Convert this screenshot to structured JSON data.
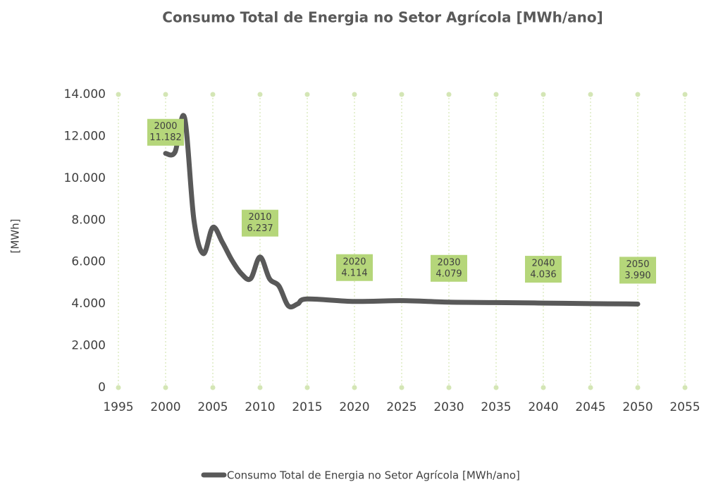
{
  "chart_data": {
    "type": "line",
    "title": "Consumo Total de Energia no Setor Agrícola [MWh/ano]",
    "y_label": "[MWh]",
    "x": [
      2000,
      2001,
      2002,
      2003,
      2004,
      2005,
      2006,
      2007,
      2008,
      2009,
      2010,
      2011,
      2012,
      2013,
      2014,
      2015,
      2020,
      2025,
      2030,
      2035,
      2040,
      2045,
      2050
    ],
    "series": [
      {
        "name": "Consumo Total de Energia no Setor Agrícola [MWh/ano]",
        "color": "#595959",
        "values": [
          11182,
          11250,
          12900,
          8000,
          6400,
          7650,
          6950,
          6100,
          5450,
          5200,
          6237,
          5200,
          4850,
          3900,
          4000,
          4230,
          4114,
          4150,
          4079,
          4060,
          4036,
          4010,
          3990
        ],
        "value_labels": [
          "11.182",
          null,
          null,
          null,
          null,
          null,
          null,
          null,
          null,
          null,
          "6.237",
          null,
          null,
          null,
          null,
          null,
          "4.114",
          null,
          "4.079",
          null,
          "4.036",
          null,
          "3.990"
        ]
      }
    ],
    "xlim": [
      1995,
      2055
    ],
    "xticks": [
      1995,
      2000,
      2005,
      2010,
      2015,
      2020,
      2025,
      2030,
      2035,
      2040,
      2045,
      2050,
      2055
    ],
    "ylim": [
      0,
      14000
    ],
    "yticks": [
      0,
      {
        "value": 2000,
        "label": "2.000"
      },
      {
        "value": 4000,
        "label": "4.000"
      },
      {
        "value": 6000,
        "label": "6.000"
      },
      {
        "value": 8000,
        "label": "8.000"
      },
      {
        "value": 10000,
        "label": "10.000"
      },
      {
        "value": 12000,
        "label": "12.000"
      },
      {
        "value": 14000,
        "label": "14.000"
      }
    ],
    "grid": "x",
    "legend": "bottom"
  }
}
